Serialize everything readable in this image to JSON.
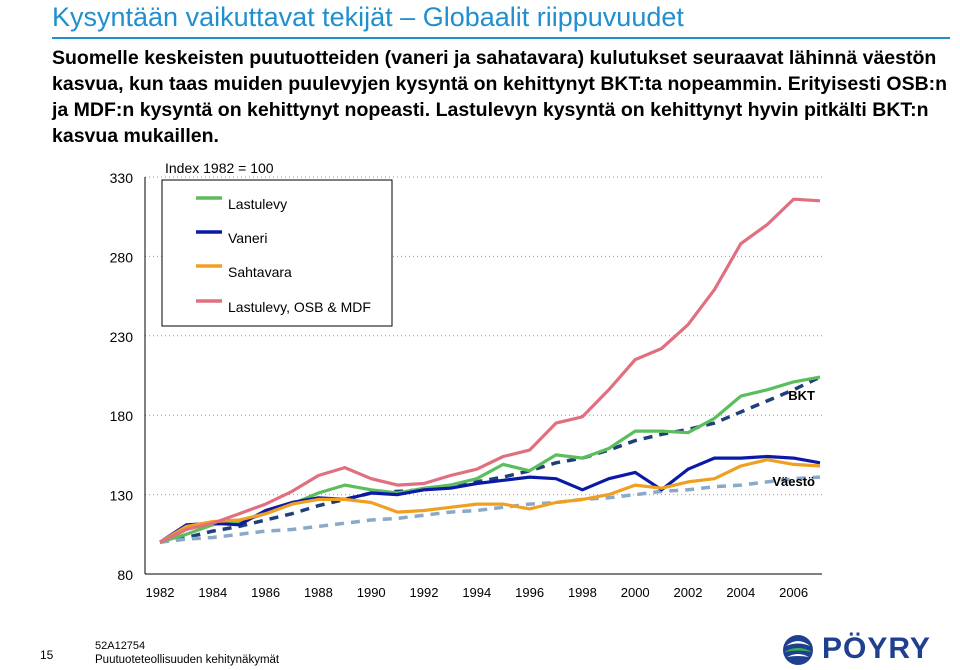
{
  "slide": {
    "title": "Kysyntään vaikuttavat tekijät – Globaalit riippuvuudet",
    "intro": "Suomelle keskeisten puutuotteiden (vaneri ja sahatavara) kulutukset seuraavat lähinnä väestön kasvua, kun taas muiden puulevyjen kysyntä on kehittynyt BKT:ta nopeammin. Erityisesti OSB:n ja MDF:n kysyntä on kehittynyt nopeasti. Lastulevyn kysyntä on kehittynyt hyvin pitkälti BKT:n kasvua mukaillen."
  },
  "footer": {
    "page_number": "15",
    "code": "52A12754",
    "subtitle": "Puutuoteteollisuuden kehitynäkymät",
    "logo_text": "PÖYRY"
  },
  "colors": {
    "title": "#1f8fd0",
    "Lastulevy": "#5cbd5c",
    "Vaneri": "#0a1aa6",
    "Sahtavara": "#f0a020",
    "OSB_MDF": "#e07080",
    "BKT": "#1f3f7a",
    "Vaesto": "#8aa8c8"
  },
  "chart_data": {
    "type": "line",
    "ylabel": "Index 1982 = 100",
    "ylim": [
      80,
      330
    ],
    "yticks": [
      80,
      130,
      180,
      230,
      280,
      330
    ],
    "xlim": [
      1982,
      2007
    ],
    "xticks": [
      1982,
      1984,
      1986,
      1988,
      1990,
      1992,
      1994,
      1996,
      1998,
      2000,
      2002,
      2004,
      2006
    ],
    "legend_position": "top-left",
    "series": [
      {
        "name": "Lastulevy",
        "style": "solid",
        "x": [
          1982,
          1983,
          1984,
          1985,
          1986,
          1987,
          1988,
          1989,
          1990,
          1991,
          1992,
          1993,
          1994,
          1995,
          1996,
          1997,
          1998,
          1999,
          2000,
          2001,
          2002,
          2003,
          2004,
          2005,
          2006,
          2007
        ],
        "values": [
          100,
          105,
          111,
          113,
          118,
          124,
          131,
          136,
          133,
          131,
          134,
          136,
          140,
          149,
          145,
          155,
          153,
          159,
          170,
          170,
          169,
          178,
          192,
          196,
          201,
          204
        ]
      },
      {
        "name": "Vaneri",
        "style": "solid",
        "x": [
          1982,
          1983,
          1984,
          1985,
          1986,
          1987,
          1988,
          1989,
          1990,
          1991,
          1992,
          1993,
          1994,
          1995,
          1996,
          1997,
          1998,
          1999,
          2000,
          2001,
          2002,
          2003,
          2004,
          2005,
          2006,
          2007
        ],
        "values": [
          100,
          111,
          112,
          111,
          120,
          125,
          128,
          127,
          131,
          130,
          133,
          134,
          137,
          139,
          141,
          140,
          133,
          140,
          144,
          133,
          146,
          153,
          153,
          154,
          153,
          150
        ]
      },
      {
        "name": "Sahtavara",
        "style": "solid",
        "x": [
          1982,
          1983,
          1984,
          1985,
          1986,
          1987,
          1988,
          1989,
          1990,
          1991,
          1992,
          1993,
          1994,
          1995,
          1996,
          1997,
          1998,
          1999,
          2000,
          2001,
          2002,
          2003,
          2004,
          2005,
          2006,
          2007
        ],
        "values": [
          100,
          110,
          113,
          114,
          118,
          124,
          127,
          127,
          125,
          119,
          120,
          122,
          124,
          124,
          121,
          125,
          127,
          130,
          136,
          134,
          138,
          140,
          148,
          152,
          149,
          148
        ]
      },
      {
        "name": "Lastulevy, OSB & MDF",
        "style": "solid",
        "x": [
          1982,
          1983,
          1984,
          1985,
          1986,
          1987,
          1988,
          1989,
          1990,
          1991,
          1992,
          1993,
          1994,
          1995,
          1996,
          1997,
          1998,
          1999,
          2000,
          2001,
          2002,
          2003,
          2004,
          2005,
          2006,
          2007
        ],
        "values": [
          100,
          108,
          112,
          118,
          124,
          132,
          142,
          147,
          140,
          136,
          137,
          142,
          146,
          154,
          158,
          175,
          179,
          196,
          215,
          222,
          237,
          259,
          288,
          300,
          316,
          315
        ]
      },
      {
        "name": "BKT",
        "style": "dashed",
        "x": [
          1982,
          1983,
          1984,
          1985,
          1986,
          1987,
          1988,
          1989,
          1990,
          1991,
          1992,
          1993,
          1994,
          1995,
          1996,
          1997,
          1998,
          1999,
          2000,
          2001,
          2002,
          2003,
          2004,
          2005,
          2006,
          2007
        ],
        "values": [
          100,
          103,
          107,
          110,
          114,
          118,
          123,
          127,
          131,
          132,
          133,
          135,
          138,
          141,
          145,
          150,
          153,
          158,
          164,
          168,
          171,
          175,
          182,
          189,
          196,
          204
        ]
      },
      {
        "name": "Väestö",
        "style": "dashed",
        "x": [
          1982,
          1983,
          1984,
          1985,
          1986,
          1987,
          1988,
          1989,
          1990,
          1991,
          1992,
          1993,
          1994,
          1995,
          1996,
          1997,
          1998,
          1999,
          2000,
          2001,
          2002,
          2003,
          2004,
          2005,
          2006,
          2007
        ],
        "values": [
          100,
          102,
          103,
          105,
          107,
          108,
          110,
          112,
          114,
          115,
          117,
          119,
          120,
          122,
          124,
          125,
          127,
          128,
          130,
          132,
          133,
          135,
          136,
          138,
          140,
          141
        ]
      }
    ],
    "legend": [
      "Lastulevy",
      "Vaneri",
      "Sahtavara",
      "Lastulevy, OSB & MDF"
    ],
    "line_labels": [
      {
        "series": "BKT",
        "text": "BKT"
      },
      {
        "series": "Väestö",
        "text": "Väestö"
      }
    ]
  }
}
